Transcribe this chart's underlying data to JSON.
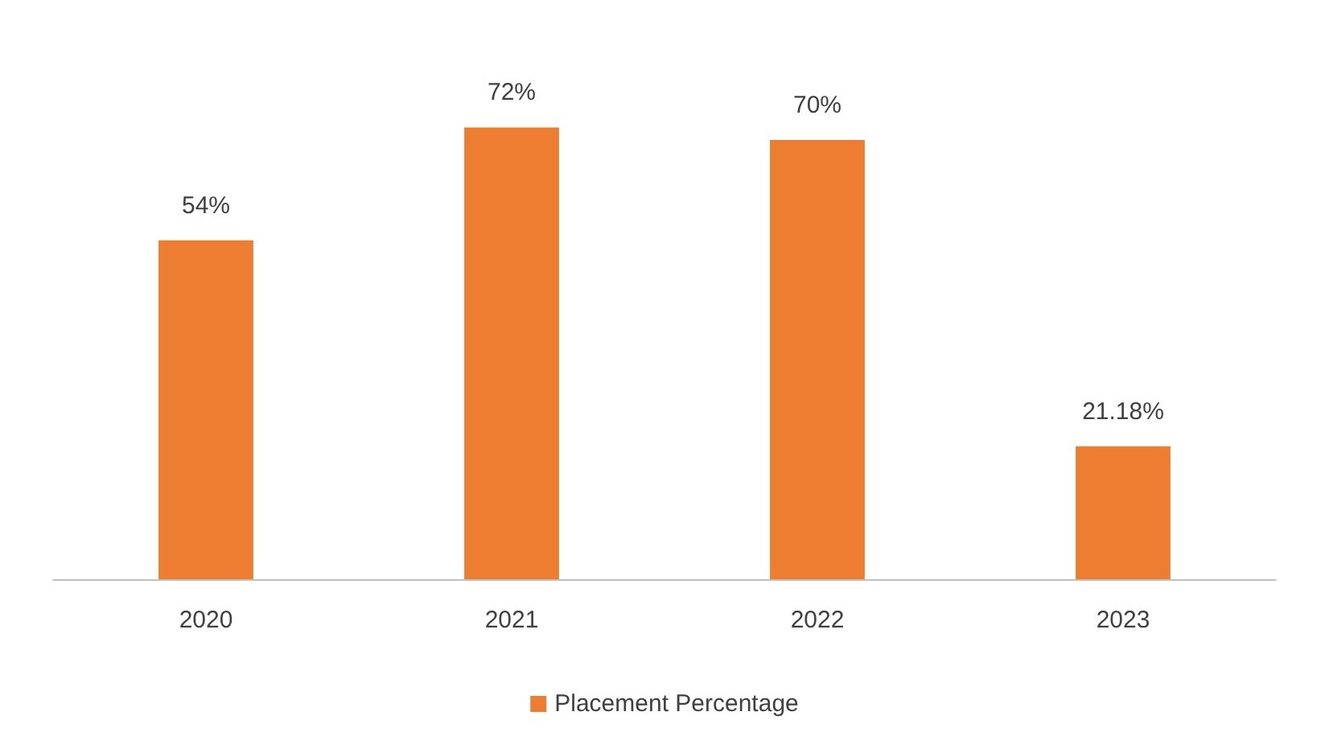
{
  "chart_data": {
    "type": "bar",
    "categories": [
      "2020",
      "2021",
      "2022",
      "2023"
    ],
    "series": [
      {
        "name": "Placement Percentage",
        "color": "#ed7d31",
        "values": [
          54,
          72,
          70,
          21.18
        ],
        "value_labels": [
          "54%",
          "72%",
          "70%",
          "21.18%"
        ]
      }
    ],
    "legend": "bottom"
  }
}
